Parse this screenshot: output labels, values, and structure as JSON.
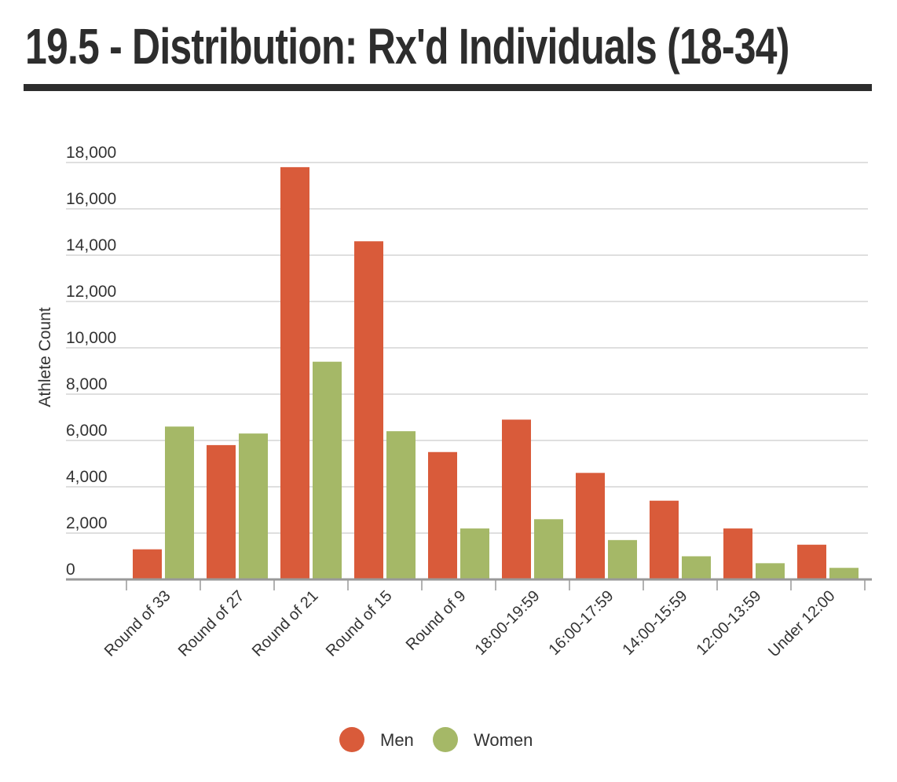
{
  "page": {
    "title": "19.5 - Distribution: Rx'd Individuals (18-34)"
  },
  "chart_data": {
    "type": "bar",
    "title": "19.5 - Distribution: Rx'd Individuals (18-34)",
    "xlabel": "",
    "ylabel": "Athlete Count",
    "ylim": [
      0,
      18000
    ],
    "yticks": [
      0,
      2000,
      4000,
      6000,
      8000,
      10000,
      12000,
      14000,
      16000,
      18000
    ],
    "ytick_labels": [
      "0",
      "2,000",
      "4,000",
      "6,000",
      "8,000",
      "10,000",
      "12,000",
      "14,000",
      "16,000",
      "18,000"
    ],
    "grid": true,
    "legend_position": "bottom-center",
    "categories": [
      "Round of 33",
      "Round of 27",
      "Round of 21",
      "Round of 15",
      "Round of 9",
      "18:00-19:59",
      "16:00-17:59",
      "14:00-15:59",
      "12:00-13:59",
      "Under 12:00"
    ],
    "series": [
      {
        "name": "Men",
        "color": "#d95b3a",
        "values": [
          1300,
          5800,
          17800,
          14600,
          5500,
          6900,
          4600,
          3400,
          2200,
          1500
        ]
      },
      {
        "name": "Women",
        "color": "#a5b867",
        "values": [
          6600,
          6300,
          9400,
          6400,
          2200,
          2600,
          1700,
          1000,
          700,
          500
        ]
      }
    ]
  }
}
